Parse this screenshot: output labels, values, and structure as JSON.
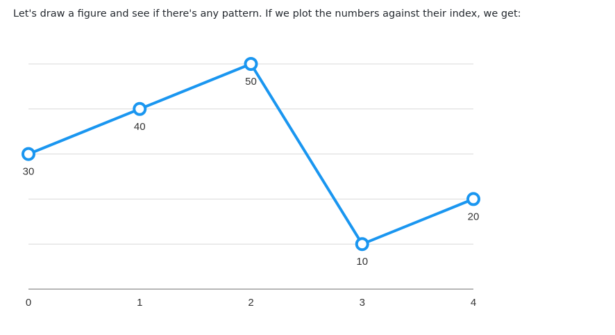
{
  "intro_text": "Let's draw a figure and see if there's any pattern. If we plot the numbers against their index, we get:",
  "colors": {
    "line": "#1a96f0",
    "grid": "#d8d8d8",
    "axis": "#8a8a8a"
  },
  "chart_data": {
    "type": "line",
    "x": [
      0,
      1,
      2,
      3,
      4
    ],
    "series": [
      {
        "values": [
          30,
          40,
          50,
          10,
          20
        ]
      }
    ],
    "data_labels": [
      "30",
      "40",
      "50",
      "10",
      "20"
    ],
    "x_tick_labels": [
      "0",
      "1",
      "2",
      "3",
      "4"
    ],
    "xlabel": "",
    "ylabel": "",
    "ylim": [
      0,
      50
    ],
    "grid": true,
    "legend": "none"
  }
}
